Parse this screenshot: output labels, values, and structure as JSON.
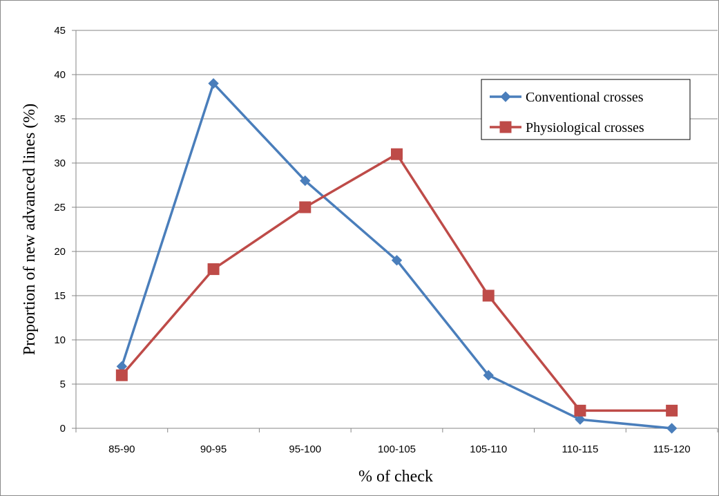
{
  "chart_data": {
    "type": "line",
    "title": "",
    "xlabel": "% of check",
    "ylabel": "Proportion of new advanced lines (%)",
    "categories": [
      "85-90",
      "90-95",
      "95-100",
      "100-105",
      "105-110",
      "110-115",
      "115-120"
    ],
    "ylim": [
      0,
      45
    ],
    "yticks": [
      0,
      5,
      10,
      15,
      20,
      25,
      30,
      35,
      40,
      45
    ],
    "grid": true,
    "legend_position": "top-right",
    "series": [
      {
        "name": "Conventional crosses",
        "values": [
          7,
          39,
          28,
          19,
          6,
          1,
          0
        ],
        "color": "#4a7ebb",
        "marker": "diamond"
      },
      {
        "name": "Physiological crosses",
        "values": [
          6,
          18,
          25,
          31,
          15,
          2,
          2
        ],
        "color": "#be4b48",
        "marker": "square"
      }
    ]
  }
}
